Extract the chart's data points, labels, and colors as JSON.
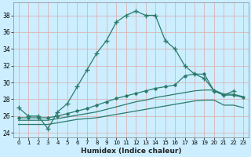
{
  "xlabel": "Humidex (Indice chaleur)",
  "bg_color": "#cceeff",
  "grid_color": "#ddaaaa",
  "line_color": "#2a7a6a",
  "xlim": [
    -0.5,
    23.5
  ],
  "ylim": [
    23.5,
    39.5
  ],
  "yticks": [
    24,
    26,
    28,
    30,
    32,
    34,
    36,
    38
  ],
  "xticks": [
    0,
    1,
    2,
    3,
    4,
    5,
    6,
    7,
    8,
    9,
    10,
    11,
    12,
    13,
    14,
    15,
    16,
    17,
    18,
    19,
    20,
    21,
    22,
    23
  ],
  "series1_x": [
    0,
    1,
    2,
    3,
    4,
    5,
    6,
    7,
    8,
    9,
    10,
    11,
    12,
    13,
    14,
    15,
    16,
    17,
    18,
    19,
    20,
    21,
    22
  ],
  "series1_y": [
    27.0,
    26.0,
    26.0,
    24.5,
    26.5,
    27.5,
    29.5,
    31.5,
    33.5,
    35.0,
    37.2,
    38.0,
    38.5,
    38.0,
    38.0,
    35.0,
    34.0,
    32.0,
    31.0,
    30.5,
    29.0,
    28.5,
    29.0
  ],
  "series2_x": [
    0,
    1,
    2,
    3,
    4,
    5,
    6,
    7,
    8,
    9,
    10,
    11,
    12,
    13,
    14,
    15,
    16,
    17,
    18,
    19,
    20,
    21,
    22,
    23
  ],
  "series2_y": [
    25.8,
    25.8,
    25.8,
    25.8,
    26.0,
    26.3,
    26.6,
    26.9,
    27.3,
    27.7,
    28.1,
    28.4,
    28.7,
    29.0,
    29.3,
    29.5,
    29.7,
    30.8,
    31.0,
    31.0,
    29.0,
    28.5,
    28.5,
    28.2
  ],
  "series3_x": [
    0,
    1,
    2,
    3,
    4,
    5,
    6,
    7,
    8,
    9,
    10,
    11,
    12,
    13,
    14,
    15,
    16,
    17,
    18,
    19,
    20,
    21,
    22,
    23
  ],
  "series3_y": [
    25.5,
    25.5,
    25.5,
    25.5,
    25.7,
    25.9,
    26.1,
    26.3,
    26.5,
    26.8,
    27.1,
    27.4,
    27.7,
    27.9,
    28.2,
    28.4,
    28.6,
    28.8,
    29.0,
    29.1,
    29.1,
    28.6,
    28.6,
    28.3
  ],
  "series4_x": [
    0,
    1,
    2,
    3,
    4,
    5,
    6,
    7,
    8,
    9,
    10,
    11,
    12,
    13,
    14,
    15,
    16,
    17,
    18,
    19,
    20,
    21,
    22,
    23
  ],
  "series4_y": [
    25.0,
    25.0,
    25.0,
    25.0,
    25.2,
    25.4,
    25.6,
    25.7,
    25.8,
    26.0,
    26.2,
    26.4,
    26.6,
    26.8,
    27.0,
    27.2,
    27.4,
    27.6,
    27.8,
    27.9,
    27.9,
    27.3,
    27.3,
    27.0
  ]
}
